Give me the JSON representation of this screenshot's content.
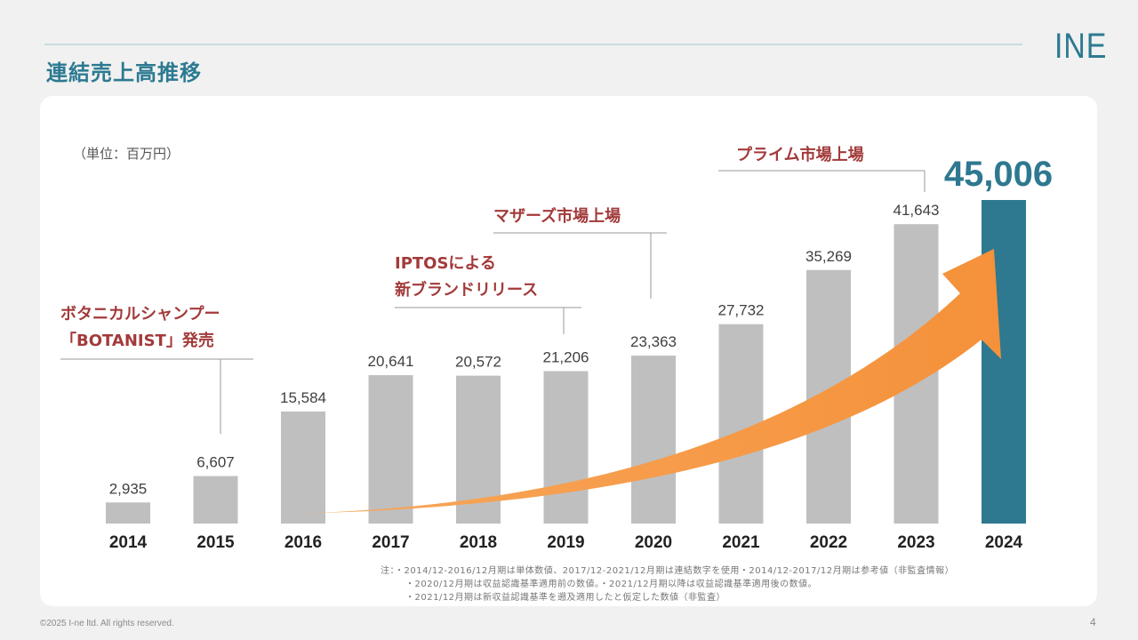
{
  "page": {
    "title": "連結売上高推移",
    "logo": "INE",
    "unit": "（単位：百万円）",
    "footer": "©2025 I-ne ltd. All rights reserved.",
    "page_number": "4",
    "notes": [
      "注：・2014/12-2016/12月期は単体数値、2017/12-2021/12月期は連結数字を使用・2014/12-2017/12月期は参考値（非監査情報）",
      "・2020/12月期は収益認識基準適用前の数値。・2021/12月期以降は収益認識基準適用後の数値。",
      "・2021/12月期は新収益認識基準を遡及適用したと仮定した数値（非監査）"
    ]
  },
  "colors": {
    "bar": "#bfbfbf",
    "highlight_bar": "#2e7890",
    "highlight_label": "#2e7890",
    "annotation_text": "#a33a3a",
    "arrow": "#f5953f",
    "value_label": "#404040"
  },
  "chart_data": {
    "type": "bar",
    "title": "連結売上高推移",
    "ylabel": "（単位：百万円）",
    "ylim": [
      0,
      45006
    ],
    "grid": false,
    "legend": "none",
    "categories": [
      "2014",
      "2015",
      "2016",
      "2017",
      "2018",
      "2019",
      "2020",
      "2021",
      "2022",
      "2023",
      "2024"
    ],
    "value_labels": [
      "2,935",
      "6,607",
      "15,584",
      "20,641",
      "20,572",
      "21,206",
      "23,363",
      "27,732",
      "35,269",
      "41,643",
      "45,006"
    ],
    "values": [
      2935,
      6607,
      15584,
      20641,
      20572,
      21206,
      23363,
      27732,
      35269,
      41643,
      45006
    ],
    "highlight_index": 10,
    "annotations": [
      {
        "lines": [
          "ボタニカルシャンプー",
          "「BOTANIST」発売"
        ],
        "year": "2015"
      },
      {
        "lines": [
          "IPTOSによる",
          "新ブランドリリース"
        ],
        "year": "2019"
      },
      {
        "lines": [
          "マザーズ市場上場"
        ],
        "year": "2020"
      },
      {
        "lines": [
          "プライム市場上場"
        ],
        "year": "2023"
      }
    ]
  }
}
